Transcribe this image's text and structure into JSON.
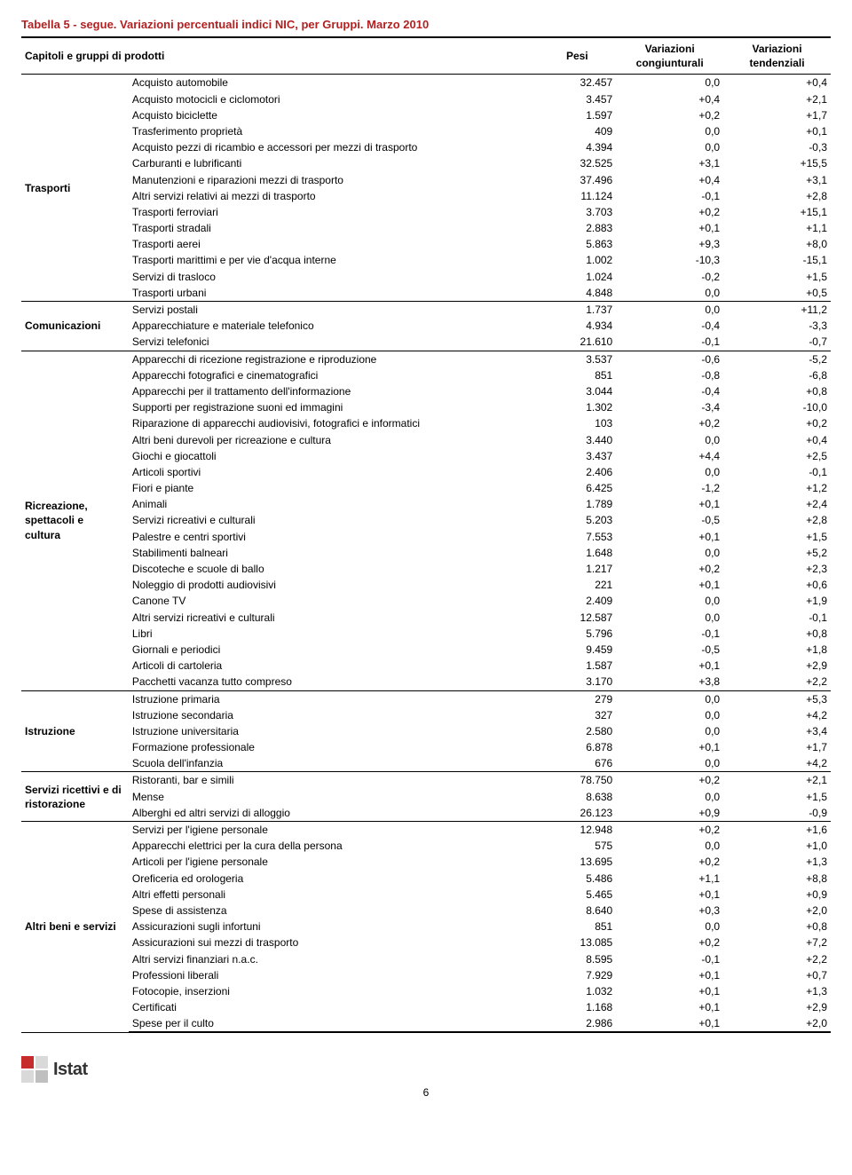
{
  "title": "Tabella 5 - segue. Variazioni percentuali indici NIC, per Gruppi. Marzo 2010",
  "columns": {
    "c1": "Capitoli e gruppi di prodotti",
    "c2": "Pesi",
    "c3": "Variazioni congiunturali",
    "c4": "Variazioni tendenziali"
  },
  "groups": [
    {
      "label": "Trasporti",
      "rows": [
        [
          "Acquisto automobile",
          "32.457",
          "0,0",
          "+0,4"
        ],
        [
          "Acquisto motocicli e ciclomotori",
          "3.457",
          "+0,4",
          "+2,1"
        ],
        [
          "Acquisto biciclette",
          "1.597",
          "+0,2",
          "+1,7"
        ],
        [
          "Trasferimento proprietà",
          "409",
          "0,0",
          "+0,1"
        ],
        [
          "Acquisto pezzi di ricambio e accessori per mezzi di trasporto",
          "4.394",
          "0,0",
          "-0,3"
        ],
        [
          "Carburanti e lubrificanti",
          "32.525",
          "+3,1",
          "+15,5"
        ],
        [
          "Manutenzioni e riparazioni mezzi di trasporto",
          "37.496",
          "+0,4",
          "+3,1"
        ],
        [
          "Altri servizi relativi ai mezzi di trasporto",
          "11.124",
          "-0,1",
          "+2,8"
        ],
        [
          "Trasporti ferroviari",
          "3.703",
          "+0,2",
          "+15,1"
        ],
        [
          "Trasporti stradali",
          "2.883",
          "+0,1",
          "+1,1"
        ],
        [
          "Trasporti aerei",
          "5.863",
          "+9,3",
          "+8,0"
        ],
        [
          "Trasporti marittimi e per vie d'acqua interne",
          "1.002",
          "-10,3",
          "-15,1"
        ],
        [
          "Servizi di trasloco",
          "1.024",
          "-0,2",
          "+1,5"
        ],
        [
          "Trasporti urbani",
          "4.848",
          "0,0",
          "+0,5"
        ]
      ]
    },
    {
      "label": "Comunicazioni",
      "rows": [
        [
          "Servizi postali",
          "1.737",
          "0,0",
          "+11,2"
        ],
        [
          "Apparecchiature e materiale telefonico",
          "4.934",
          "-0,4",
          "-3,3"
        ],
        [
          "Servizi telefonici",
          "21.610",
          "-0,1",
          "-0,7"
        ]
      ]
    },
    {
      "label": "Ricreazione, spettacoli e cultura",
      "rows": [
        [
          "Apparecchi di ricezione registrazione e riproduzione",
          "3.537",
          "-0,6",
          "-5,2"
        ],
        [
          "Apparecchi fotografici e cinematografici",
          "851",
          "-0,8",
          "-6,8"
        ],
        [
          "Apparecchi per il trattamento dell'informazione",
          "3.044",
          "-0,4",
          "+0,8"
        ],
        [
          "Supporti per registrazione suoni ed immagini",
          "1.302",
          "-3,4",
          "-10,0"
        ],
        [
          "Riparazione di apparecchi audiovisivi, fotografici e informatici",
          "103",
          "+0,2",
          "+0,2"
        ],
        [
          "Altri beni durevoli per ricreazione e cultura",
          "3.440",
          "0,0",
          "+0,4"
        ],
        [
          "Giochi e giocattoli",
          "3.437",
          "+4,4",
          "+2,5"
        ],
        [
          "Articoli sportivi",
          "2.406",
          "0,0",
          "-0,1"
        ],
        [
          "Fiori e piante",
          "6.425",
          "-1,2",
          "+1,2"
        ],
        [
          "Animali",
          "1.789",
          "+0,1",
          "+2,4"
        ],
        [
          "Servizi ricreativi e culturali",
          "5.203",
          "-0,5",
          "+2,8"
        ],
        [
          "Palestre e centri sportivi",
          "7.553",
          "+0,1",
          "+1,5"
        ],
        [
          "Stabilimenti balneari",
          "1.648",
          "0,0",
          "+5,2"
        ],
        [
          "Discoteche e scuole di ballo",
          "1.217",
          "+0,2",
          "+2,3"
        ],
        [
          "Noleggio di prodotti audiovisivi",
          "221",
          "+0,1",
          "+0,6"
        ],
        [
          "Canone TV",
          "2.409",
          "0,0",
          "+1,9"
        ],
        [
          "Altri servizi ricreativi e culturali",
          "12.587",
          "0,0",
          "-0,1"
        ],
        [
          "Libri",
          "5.796",
          "-0,1",
          "+0,8"
        ],
        [
          "Giornali e periodici",
          "9.459",
          "-0,5",
          "+1,8"
        ],
        [
          "Articoli di cartoleria",
          "1.587",
          "+0,1",
          "+2,9"
        ],
        [
          "Pacchetti vacanza tutto compreso",
          "3.170",
          "+3,8",
          "+2,2"
        ]
      ]
    },
    {
      "label": "Istruzione",
      "rows": [
        [
          "Istruzione primaria",
          "279",
          "0,0",
          "+5,3"
        ],
        [
          "Istruzione secondaria",
          "327",
          "0,0",
          "+4,2"
        ],
        [
          "Istruzione universitaria",
          "2.580",
          "0,0",
          "+3,4"
        ],
        [
          "Formazione professionale",
          "6.878",
          "+0,1",
          "+1,7"
        ],
        [
          "Scuola dell'infanzia",
          "676",
          "0,0",
          "+4,2"
        ]
      ]
    },
    {
      "label": "Servizi ricettivi e di ristorazione",
      "rows": [
        [
          "Ristoranti, bar e simili",
          "78.750",
          "+0,2",
          "+2,1"
        ],
        [
          "Mense",
          "8.638",
          "0,0",
          "+1,5"
        ],
        [
          "Alberghi ed altri servizi di alloggio",
          "26.123",
          "+0,9",
          "-0,9"
        ]
      ]
    },
    {
      "label": "Altri beni e servizi",
      "rows": [
        [
          "Servizi per l'igiene personale",
          "12.948",
          "+0,2",
          "+1,6"
        ],
        [
          "Apparecchi elettrici per la cura della persona",
          "575",
          "0,0",
          "+1,0"
        ],
        [
          "Articoli per l'igiene personale",
          "13.695",
          "+0,2",
          "+1,3"
        ],
        [
          "Oreficeria ed orologeria",
          "5.486",
          "+1,1",
          "+8,8"
        ],
        [
          "Altri effetti personali",
          "5.465",
          "+0,1",
          "+0,9"
        ],
        [
          "Spese di assistenza",
          "8.640",
          "+0,3",
          "+2,0"
        ],
        [
          "Assicurazioni sugli infortuni",
          "851",
          "0,0",
          "+0,8"
        ],
        [
          "Assicurazioni sui mezzi di trasporto",
          "13.085",
          "+0,2",
          "+7,2"
        ],
        [
          "Altri servizi finanziari n.a.c.",
          "8.595",
          "-0,1",
          "+2,2"
        ],
        [
          "Professioni liberali",
          "7.929",
          "+0,1",
          "+0,7"
        ],
        [
          "Fotocopie, inserzioni",
          "1.032",
          "+0,1",
          "+1,3"
        ],
        [
          "Certificati",
          "1.168",
          "+0,1",
          "+2,9"
        ],
        [
          "Spese per il culto",
          "2.986",
          "+0,1",
          "+2,0"
        ]
      ]
    }
  ],
  "footer": {
    "brand": "Istat",
    "page": "6",
    "logo_colors": [
      "#c62c2c",
      "#d9d9d9",
      "#d9d9d9",
      "#bfbfbf"
    ]
  }
}
